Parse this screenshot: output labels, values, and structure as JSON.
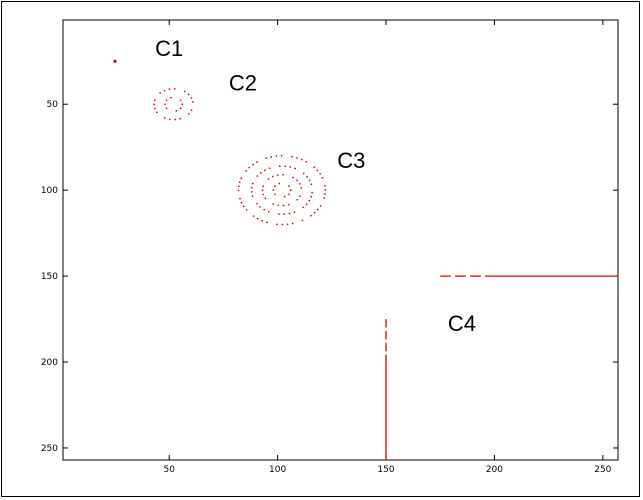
{
  "chart_data": {
    "type": "scatter",
    "title": "",
    "xlabel": "",
    "ylabel": "",
    "xlim": [
      1,
      257
    ],
    "ylim": [
      1,
      257
    ],
    "y_reversed": true,
    "grid": false,
    "xticks": [
      50,
      100,
      150,
      200,
      250
    ],
    "yticks": [
      50,
      100,
      150,
      200,
      250
    ],
    "tick_labels_x": [
      "50",
      "100",
      "150",
      "200",
      "250"
    ],
    "tick_labels_y": [
      "50",
      "100",
      "150",
      "200",
      "250"
    ],
    "point_color": "#dd0000",
    "annotations": [
      {
        "text": "C1",
        "x": 50,
        "y": 22
      },
      {
        "text": "C2",
        "x": 84,
        "y": 42
      },
      {
        "text": "C3",
        "x": 134,
        "y": 87
      },
      {
        "text": "C4",
        "x": 185,
        "y": 182
      }
    ],
    "clusters": [
      {
        "label": "C1",
        "kind": "point",
        "cx": 25,
        "cy": 25
      },
      {
        "label": "C2",
        "kind": "rings",
        "cx": 52,
        "cy": 50,
        "radii": [
          4,
          9
        ]
      },
      {
        "label": "C3",
        "kind": "rings",
        "cx": 102,
        "cy": 100,
        "radii": [
          4,
          9,
          14,
          20
        ]
      },
      {
        "label": "C4",
        "kind": "lines",
        "segments": [
          {
            "x1": 175,
            "y1": 150,
            "x2": 257,
            "y2": 150
          },
          {
            "x1": 150,
            "y1": 175,
            "x2": 150,
            "y2": 257
          }
        ]
      }
    ]
  }
}
